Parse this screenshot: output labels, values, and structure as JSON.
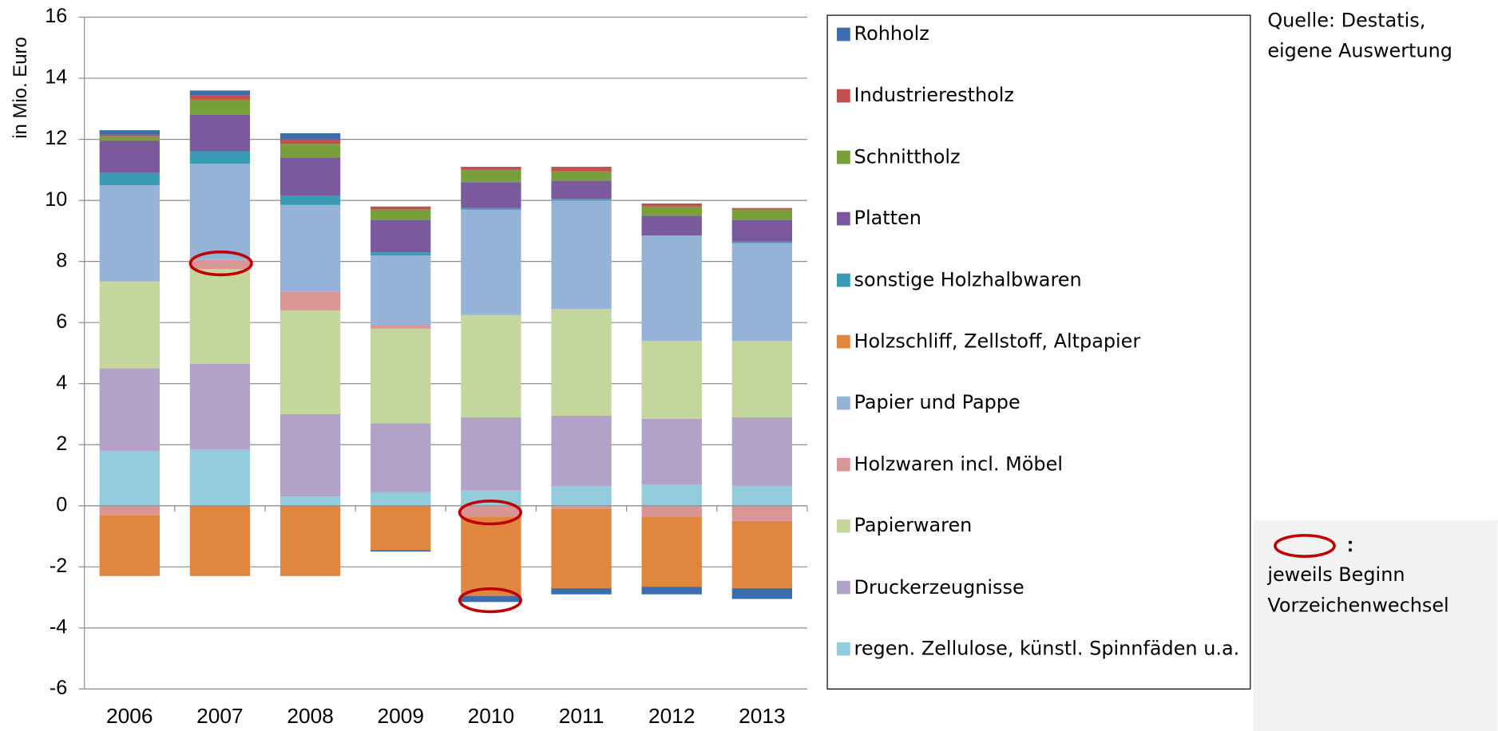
{
  "chart_data": {
    "type": "stacked_bar",
    "y_label": "in Mio. Euro",
    "categories": [
      "2006",
      "2007",
      "2008",
      "2009",
      "2010",
      "2011",
      "2012",
      "2013"
    ],
    "ylim": [
      -6,
      16
    ],
    "yticks": [
      -6,
      -4,
      -2,
      0,
      2,
      4,
      6,
      8,
      10,
      12,
      14,
      16
    ],
    "grid": true,
    "series": [
      {
        "name": "regen. Zellulose, künstl. Spinnfäden u.a.",
        "color": "#93cddd",
        "values": [
          1.8,
          1.85,
          0.3,
          0.45,
          0.5,
          0.65,
          0.7,
          0.65
        ]
      },
      {
        "name": "Druckerzeugnisse",
        "color": "#b3a2c7",
        "values": [
          2.7,
          2.8,
          2.7,
          2.25,
          2.4,
          2.3,
          2.15,
          2.25
        ]
      },
      {
        "name": "Papierwaren",
        "color": "#c3d69b",
        "values": [
          2.85,
          3.1,
          3.4,
          3.1,
          3.35,
          3.5,
          2.55,
          2.5
        ]
      },
      {
        "name": "Holzwaren incl. Möbel",
        "color": "#d99694",
        "values": [
          -0.3,
          0.3,
          0.6,
          0.1,
          -0.35,
          -0.1,
          -0.35,
          -0.5
        ]
      },
      {
        "name": "Papier und Pappe",
        "color": "#95b3d7",
        "values": [
          3.15,
          3.15,
          2.85,
          2.3,
          3.45,
          3.55,
          3.45,
          3.2
        ]
      },
      {
        "name": "Holzschliff, Zellstoff, Altpapier",
        "color": "#e0863e",
        "values": [
          -2.0,
          -2.3,
          -2.3,
          -1.45,
          -2.6,
          -2.6,
          -2.3,
          -2.2
        ]
      },
      {
        "name": "sonstige Holzhalbwaren",
        "color": "#3a9bb5",
        "values": [
          0.4,
          0.4,
          0.3,
          0.1,
          0.05,
          0.05,
          0,
          0.05
        ]
      },
      {
        "name": "Platten",
        "color": "#7a5a9c",
        "values": [
          1.05,
          1.2,
          1.25,
          1.05,
          0.85,
          0.6,
          0.65,
          0.7
        ]
      },
      {
        "name": "Schnittholz",
        "color": "#77a03a",
        "values": [
          0.15,
          0.5,
          0.45,
          0.35,
          0.4,
          0.3,
          0.3,
          0.35
        ]
      },
      {
        "name": "Industrierestholz",
        "color": "#c0504d",
        "values": [
          0.05,
          0.15,
          0.15,
          0.1,
          0.1,
          0.15,
          0.1,
          0.05
        ]
      },
      {
        "name": "Rohholz",
        "color": "#3d6bb0",
        "values": [
          0.15,
          0.15,
          0.2,
          -0.05,
          -0.2,
          -0.2,
          -0.25,
          -0.35
        ]
      }
    ],
    "source": [
      "Quelle: Destatis,",
      "eigene Auswertung"
    ],
    "note_colon": ":",
    "note": [
      "jeweils Beginn",
      "Vorzeichenwechsel"
    ]
  }
}
